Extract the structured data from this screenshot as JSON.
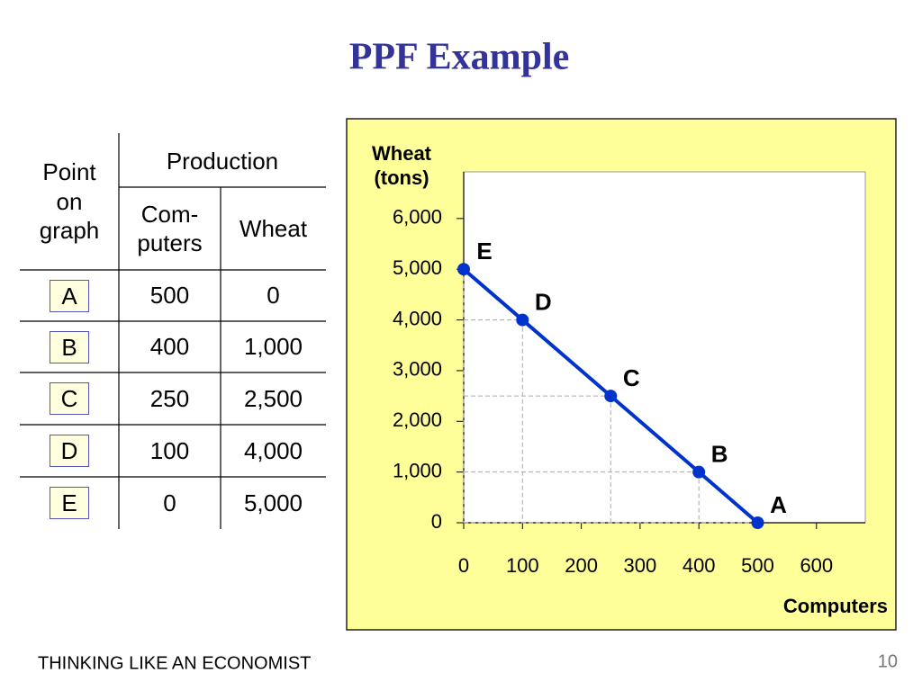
{
  "title": "PPF Example",
  "table": {
    "header": {
      "point": "Point on graph",
      "production": "Production",
      "computers": "Com-puters",
      "wheat": "Wheat"
    },
    "rows": [
      [
        "A",
        "500",
        "0"
      ],
      [
        "B",
        "400",
        "1,000"
      ],
      [
        "C",
        "250",
        "2,500"
      ],
      [
        "D",
        "100",
        "4,000"
      ],
      [
        "E",
        "0",
        "5,000"
      ]
    ]
  },
  "chart_data": {
    "type": "line",
    "y_label": "Wheat (tons)",
    "x_label": "Computers",
    "x": [
      500,
      400,
      250,
      100,
      0
    ],
    "series": [
      {
        "color": "#0033cc",
        "values": [
          0,
          1000,
          2500,
          4000,
          5000
        ],
        "point_labels": [
          "A",
          "B",
          "C",
          "D",
          "E"
        ]
      }
    ],
    "xlim": [
      0,
      683
    ],
    "ylim": [
      0,
      6920
    ],
    "xticks": [
      0,
      100,
      200,
      300,
      400,
      500,
      600
    ],
    "yticks": [
      0,
      {
        "value": 1000,
        "label": "1,000"
      },
      {
        "value": 2000,
        "label": "2,000"
      },
      {
        "value": 3000,
        "label": "3,000"
      },
      {
        "value": 4000,
        "label": "4,000"
      },
      {
        "value": 5000,
        "label": "5,000"
      },
      {
        "value": 6000,
        "label": "6,000"
      }
    ],
    "guide_lines": true
  },
  "footer": "THINKING LIKE AN ECONOMIST",
  "page_number": "10"
}
